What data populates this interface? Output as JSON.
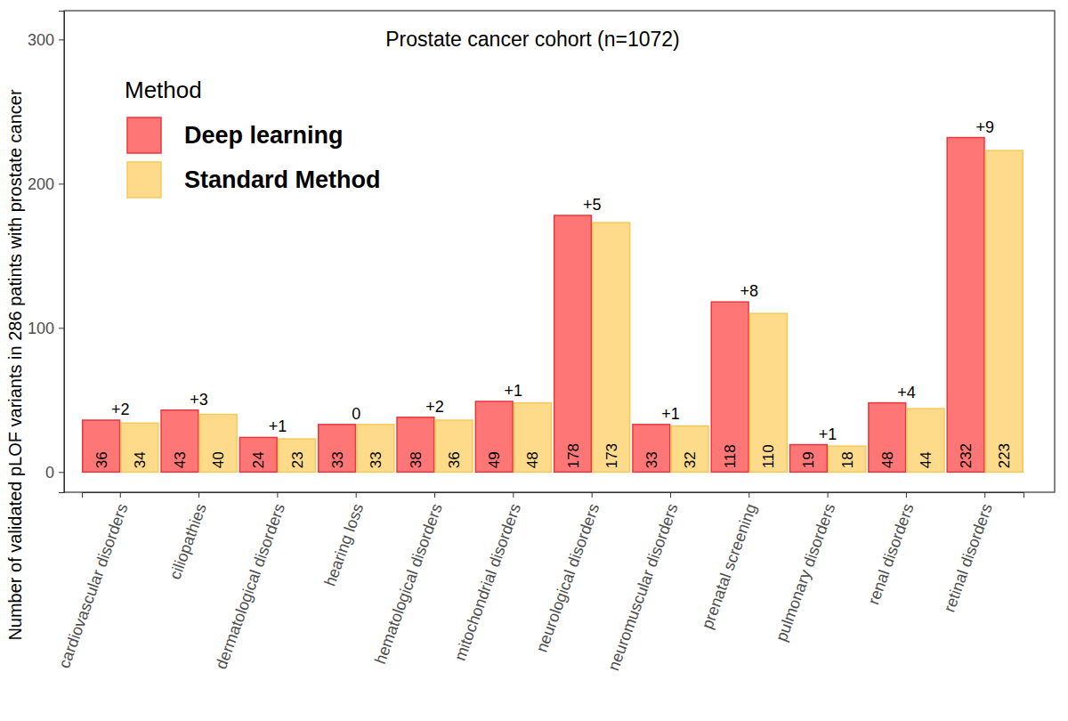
{
  "chart_data": {
    "type": "bar",
    "title": "Prostate cancer cohort (n=1072)",
    "y_label": "Number of validated pLOF variants in 286 patints with prostate cancer",
    "legend_title": "Method",
    "legend": "top-left",
    "categories": [
      "cardiovascular disorders",
      "ciliopathies",
      "dermatological disorders",
      "hearing loss",
      "hematological disorders",
      "mitochondrial disorders",
      "neurological disorders",
      "neuromuscular disorders",
      "prenatal screening",
      "pulmonary disorders",
      "renal disorders",
      "retinal disorders"
    ],
    "series": [
      {
        "name": "Deep learning",
        "color": "#ff7676",
        "values": [
          36,
          43,
          24,
          33,
          38,
          49,
          178,
          33,
          118,
          19,
          48,
          232
        ]
      },
      {
        "name": "Standard Method",
        "color": "#fddb8b",
        "values": [
          34,
          40,
          23,
          33,
          36,
          48,
          173,
          32,
          110,
          18,
          44,
          223
        ]
      }
    ],
    "annotations": [
      "+2",
      "+3",
      "+1",
      "0",
      "+2",
      "+1",
      "+5",
      "+1",
      "+8",
      "+1",
      "+4",
      "+9"
    ],
    "ylim": [
      -14,
      320
    ],
    "yticks": [
      0,
      100,
      200,
      300
    ],
    "grid": false,
    "data_labels": true
  }
}
